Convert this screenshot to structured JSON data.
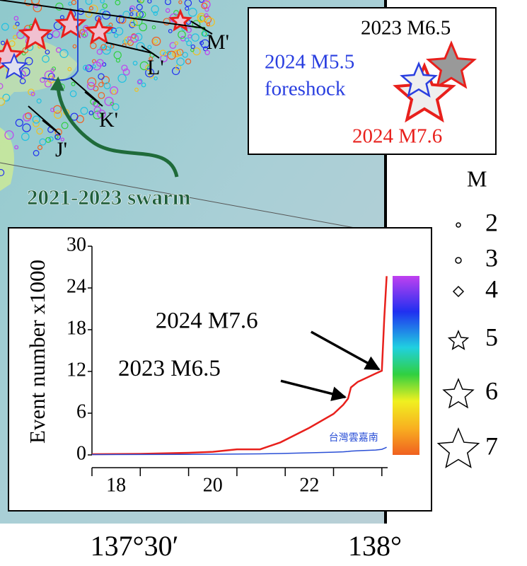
{
  "map": {
    "profile_labels": [
      "M'",
      "L'",
      "K'",
      "J'"
    ],
    "swarm_label": "2021-2023 swarm",
    "event_legend": {
      "e1": "2023 M6.5",
      "e2a": "2024 M5.5",
      "e2b": "foreshock",
      "e3": "2024 M7.6"
    },
    "magnitude_legend": {
      "title": "M",
      "items": [
        "2",
        "3",
        "4",
        "5",
        "6",
        "7"
      ]
    },
    "longitude_labels": [
      "137°30′",
      "138°"
    ]
  },
  "chart_data": {
    "type": "line",
    "ylabel": "Event number x1000",
    "x": [
      18,
      19,
      20,
      20.5,
      21,
      21.48,
      21.9,
      22.5,
      23.0,
      23.2,
      23.3,
      23.36,
      23.5,
      23.87,
      24.0,
      24.05,
      24.1
    ],
    "series": [
      {
        "name": null,
        "color": "#e8201c",
        "values": [
          0.1,
          0.15,
          0.3,
          0.45,
          0.8,
          0.8,
          1.8,
          3.9,
          5.9,
          7.2,
          8.1,
          9.7,
          10.5,
          11.7,
          12.1,
          19.6,
          25.7
        ]
      },
      {
        "name": "台灣雲嘉南",
        "color": "#2a4fd6",
        "values": [
          0.05,
          0.06,
          0.08,
          0.1,
          0.12,
          0.15,
          0.2,
          0.3,
          0.4,
          0.45,
          0.5,
          0.55,
          0.6,
          0.7,
          0.8,
          0.95,
          1.1
        ]
      }
    ],
    "xlim": [
      18,
      24.12
    ],
    "xticks": [
      {
        "value": 18.5,
        "label": "18"
      },
      {
        "value": 20.5,
        "label": "20"
      },
      {
        "value": 22.5,
        "label": "22"
      }
    ],
    "xminor": [
      18,
      19,
      20,
      21,
      22,
      23,
      24
    ],
    "ylim": [
      0,
      30
    ],
    "yticks": [
      0,
      6,
      12,
      18,
      24,
      30
    ],
    "annotations": [
      {
        "text": "2024 M7.6",
        "x": 24.0,
        "y": 12.1
      },
      {
        "text": "2023 M6.5",
        "x": 23.3,
        "y": 8.1
      }
    ]
  }
}
